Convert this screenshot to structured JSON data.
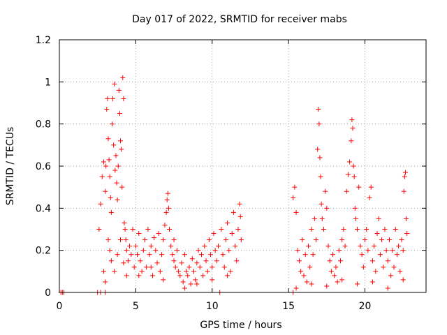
{
  "chart_data": {
    "type": "scatter",
    "title": "Day 017 of 2022, SRMTID for receiver mabs",
    "xlabel": "GPS time / hours",
    "ylabel": "SRMTID / TECUs",
    "xlim": [
      0,
      24
    ],
    "ylim": [
      0,
      1.2
    ],
    "xticks": [
      0,
      5,
      10,
      15,
      20
    ],
    "xtick_labels": [
      "0",
      "5",
      "10",
      "15",
      "20"
    ],
    "yticks": [
      0,
      0.2,
      0.4,
      0.6,
      0.8,
      1.0,
      1.2
    ],
    "ytick_labels": [
      "0",
      "0.2",
      "0.4",
      "0.6",
      "0.8",
      "1",
      "1.2"
    ],
    "grid": true,
    "marker": "+",
    "color": "#ff0000",
    "series": [
      {
        "name": "SRMTID",
        "points": [
          [
            0.1,
            0
          ],
          [
            0.2,
            0
          ],
          [
            0.3,
            0
          ],
          [
            2.5,
            0
          ],
          [
            2.7,
            0
          ],
          [
            3.0,
            0
          ],
          [
            10.5,
            0
          ],
          [
            15.3,
            0
          ],
          [
            2.6,
            0.3
          ],
          [
            2.7,
            0.42
          ],
          [
            2.8,
            0.55
          ],
          [
            2.9,
            0.62
          ],
          [
            2.9,
            0.1
          ],
          [
            3.0,
            0.05
          ],
          [
            3.0,
            0.48
          ],
          [
            3.05,
            0.6
          ],
          [
            3.1,
            0.87
          ],
          [
            3.15,
            0.92
          ],
          [
            3.2,
            0.73
          ],
          [
            3.25,
            0.63
          ],
          [
            3.3,
            0.55
          ],
          [
            3.35,
            0.45
          ],
          [
            3.4,
            0.38
          ],
          [
            3.45,
            0.8
          ],
          [
            3.5,
            0.92
          ],
          [
            3.55,
            0.7
          ],
          [
            3.6,
            0.99
          ],
          [
            3.65,
            0.58
          ],
          [
            3.7,
            0.65
          ],
          [
            3.75,
            0.52
          ],
          [
            3.8,
            0.44
          ],
          [
            3.85,
            0.6
          ],
          [
            3.9,
            0.96
          ],
          [
            3.95,
            0.85
          ],
          [
            4.0,
            0.72
          ],
          [
            4.05,
            0.68
          ],
          [
            4.1,
            0.5
          ],
          [
            4.15,
            1.02
          ],
          [
            4.2,
            0.92
          ],
          [
            4.25,
            0.33
          ],
          [
            4.3,
            0.3
          ],
          [
            4.35,
            0.25
          ],
          [
            4.4,
            0.2
          ],
          [
            4.5,
            0.15
          ],
          [
            4.6,
            0.22
          ],
          [
            4.7,
            0.18
          ],
          [
            4.8,
            0.3
          ],
          [
            4.9,
            0.12
          ],
          [
            3.2,
            0.25
          ],
          [
            3.3,
            0.2
          ],
          [
            3.4,
            0.15
          ],
          [
            3.6,
            0.1
          ],
          [
            3.8,
            0.18
          ],
          [
            4.0,
            0.25
          ],
          [
            4.2,
            0.14
          ],
          [
            4.4,
            0.08
          ],
          [
            5.0,
            0.22
          ],
          [
            5.1,
            0.18
          ],
          [
            5.2,
            0.28
          ],
          [
            5.3,
            0.15
          ],
          [
            5.4,
            0.1
          ],
          [
            5.5,
            0.2
          ],
          [
            5.6,
            0.25
          ],
          [
            5.7,
            0.12
          ],
          [
            5.8,
            0.3
          ],
          [
            5.9,
            0.18
          ],
          [
            6.0,
            0.22
          ],
          [
            6.1,
            0.08
          ],
          [
            6.2,
            0.26
          ],
          [
            6.3,
            0.2
          ],
          [
            6.4,
            0.14
          ],
          [
            6.5,
            0.28
          ],
          [
            6.6,
            0.1
          ],
          [
            6.7,
            0.18
          ],
          [
            6.8,
            0.25
          ],
          [
            6.9,
            0.32
          ],
          [
            7.0,
            0.38
          ],
          [
            7.05,
            0.44
          ],
          [
            7.1,
            0.47
          ],
          [
            7.15,
            0.4
          ],
          [
            7.2,
            0.3
          ],
          [
            7.3,
            0.22
          ],
          [
            7.4,
            0.18
          ],
          [
            7.5,
            0.15
          ],
          [
            7.6,
            0.12
          ],
          [
            7.7,
            0.2
          ],
          [
            7.8,
            0.1
          ],
          [
            7.9,
            0.08
          ],
          [
            8.0,
            0.14
          ],
          [
            8.1,
            0.05
          ],
          [
            8.2,
            0.18
          ],
          [
            8.3,
            0.1
          ],
          [
            8.4,
            0.08
          ],
          [
            8.5,
            0.12
          ],
          [
            8.6,
            0.04
          ],
          [
            8.7,
            0.16
          ],
          [
            8.8,
            0.1
          ],
          [
            8.9,
            0.06
          ],
          [
            9.0,
            0.14
          ],
          [
            9.1,
            0.2
          ],
          [
            9.2,
            0.12
          ],
          [
            9.3,
            0.18
          ],
          [
            9.4,
            0.08
          ],
          [
            9.5,
            0.22
          ],
          [
            9.6,
            0.15
          ],
          [
            9.7,
            0.1
          ],
          [
            9.8,
            0.25
          ],
          [
            9.9,
            0.18
          ],
          [
            10.0,
            0.12
          ],
          [
            10.1,
            0.28
          ],
          [
            10.2,
            0.2
          ],
          [
            10.3,
            0.15
          ],
          [
            10.4,
            0.22
          ],
          [
            10.6,
            0.3
          ],
          [
            10.7,
            0.18
          ],
          [
            10.8,
            0.12
          ],
          [
            10.9,
            0.25
          ],
          [
            11.0,
            0.33
          ],
          [
            11.1,
            0.2
          ],
          [
            11.2,
            0.1
          ],
          [
            11.3,
            0.28
          ],
          [
            11.4,
            0.38
          ],
          [
            11.5,
            0.22
          ],
          [
            11.6,
            0.15
          ],
          [
            11.7,
            0.3
          ],
          [
            11.8,
            0.42
          ],
          [
            11.85,
            0.36
          ],
          [
            11.9,
            0.25
          ],
          [
            5.2,
            0.08
          ],
          [
            6.0,
            0.12
          ],
          [
            6.8,
            0.06
          ],
          [
            7.5,
            0.25
          ],
          [
            8.2,
            0.02
          ],
          [
            9.0,
            0.04
          ],
          [
            10.0,
            0.06
          ],
          [
            11.0,
            0.08
          ],
          [
            15.3,
            0.45
          ],
          [
            15.4,
            0.5
          ],
          [
            15.5,
            0.38
          ],
          [
            15.6,
            0.2
          ],
          [
            15.7,
            0.15
          ],
          [
            15.8,
            0.1
          ],
          [
            15.9,
            0.25
          ],
          [
            16.0,
            0.08
          ],
          [
            16.1,
            0.18
          ],
          [
            16.2,
            0.05
          ],
          [
            16.3,
            0.22
          ],
          [
            16.4,
            0.12
          ],
          [
            16.5,
            0.3
          ],
          [
            16.6,
            0.18
          ],
          [
            16.7,
            0.35
          ],
          [
            16.8,
            0.25
          ],
          [
            16.9,
            0.68
          ],
          [
            16.95,
            0.87
          ],
          [
            17.0,
            0.8
          ],
          [
            17.05,
            0.64
          ],
          [
            17.1,
            0.55
          ],
          [
            17.15,
            0.42
          ],
          [
            17.2,
            0.35
          ],
          [
            17.3,
            0.3
          ],
          [
            17.4,
            0.48
          ],
          [
            17.5,
            0.4
          ],
          [
            17.6,
            0.22
          ],
          [
            17.7,
            0.15
          ],
          [
            17.8,
            0.1
          ],
          [
            17.9,
            0.18
          ],
          [
            18.0,
            0.08
          ],
          [
            18.1,
            0.12
          ],
          [
            18.2,
            0.05
          ],
          [
            18.3,
            0.2
          ],
          [
            18.4,
            0.15
          ],
          [
            18.5,
            0.25
          ],
          [
            18.6,
            0.3
          ],
          [
            18.7,
            0.22
          ],
          [
            18.8,
            0.48
          ],
          [
            18.9,
            0.56
          ],
          [
            19.0,
            0.62
          ],
          [
            19.1,
            0.72
          ],
          [
            19.15,
            0.82
          ],
          [
            19.2,
            0.78
          ],
          [
            19.25,
            0.6
          ],
          [
            19.3,
            0.55
          ],
          [
            19.35,
            0.4
          ],
          [
            19.4,
            0.35
          ],
          [
            19.5,
            0.3
          ],
          [
            19.6,
            0.5
          ],
          [
            19.7,
            0.22
          ],
          [
            19.8,
            0.18
          ],
          [
            19.9,
            0.12
          ],
          [
            20.0,
            0.25
          ],
          [
            20.1,
            0.3
          ],
          [
            20.2,
            0.2
          ],
          [
            20.3,
            0.45
          ],
          [
            20.4,
            0.5
          ],
          [
            20.5,
            0.15
          ],
          [
            20.6,
            0.22
          ],
          [
            20.7,
            0.1
          ],
          [
            20.8,
            0.28
          ],
          [
            20.9,
            0.35
          ],
          [
            21.0,
            0.18
          ],
          [
            21.1,
            0.25
          ],
          [
            21.2,
            0.12
          ],
          [
            21.3,
            0.3
          ],
          [
            21.4,
            0.2
          ],
          [
            21.5,
            0.15
          ],
          [
            21.6,
            0.25
          ],
          [
            21.7,
            0.08
          ],
          [
            21.8,
            0.2
          ],
          [
            21.9,
            0.12
          ],
          [
            22.0,
            0.3
          ],
          [
            22.1,
            0.18
          ],
          [
            22.2,
            0.22
          ],
          [
            22.3,
            0.1
          ],
          [
            22.4,
            0.25
          ],
          [
            22.5,
            0.2
          ],
          [
            22.55,
            0.48
          ],
          [
            22.6,
            0.55
          ],
          [
            22.65,
            0.57
          ],
          [
            22.7,
            0.35
          ],
          [
            22.75,
            0.28
          ],
          [
            15.5,
            0.02
          ],
          [
            16.5,
            0.04
          ],
          [
            17.5,
            0.03
          ],
          [
            18.5,
            0.06
          ],
          [
            19.5,
            0.04
          ],
          [
            20.5,
            0.05
          ],
          [
            21.5,
            0.02
          ],
          [
            22.5,
            0.06
          ]
        ]
      }
    ]
  }
}
